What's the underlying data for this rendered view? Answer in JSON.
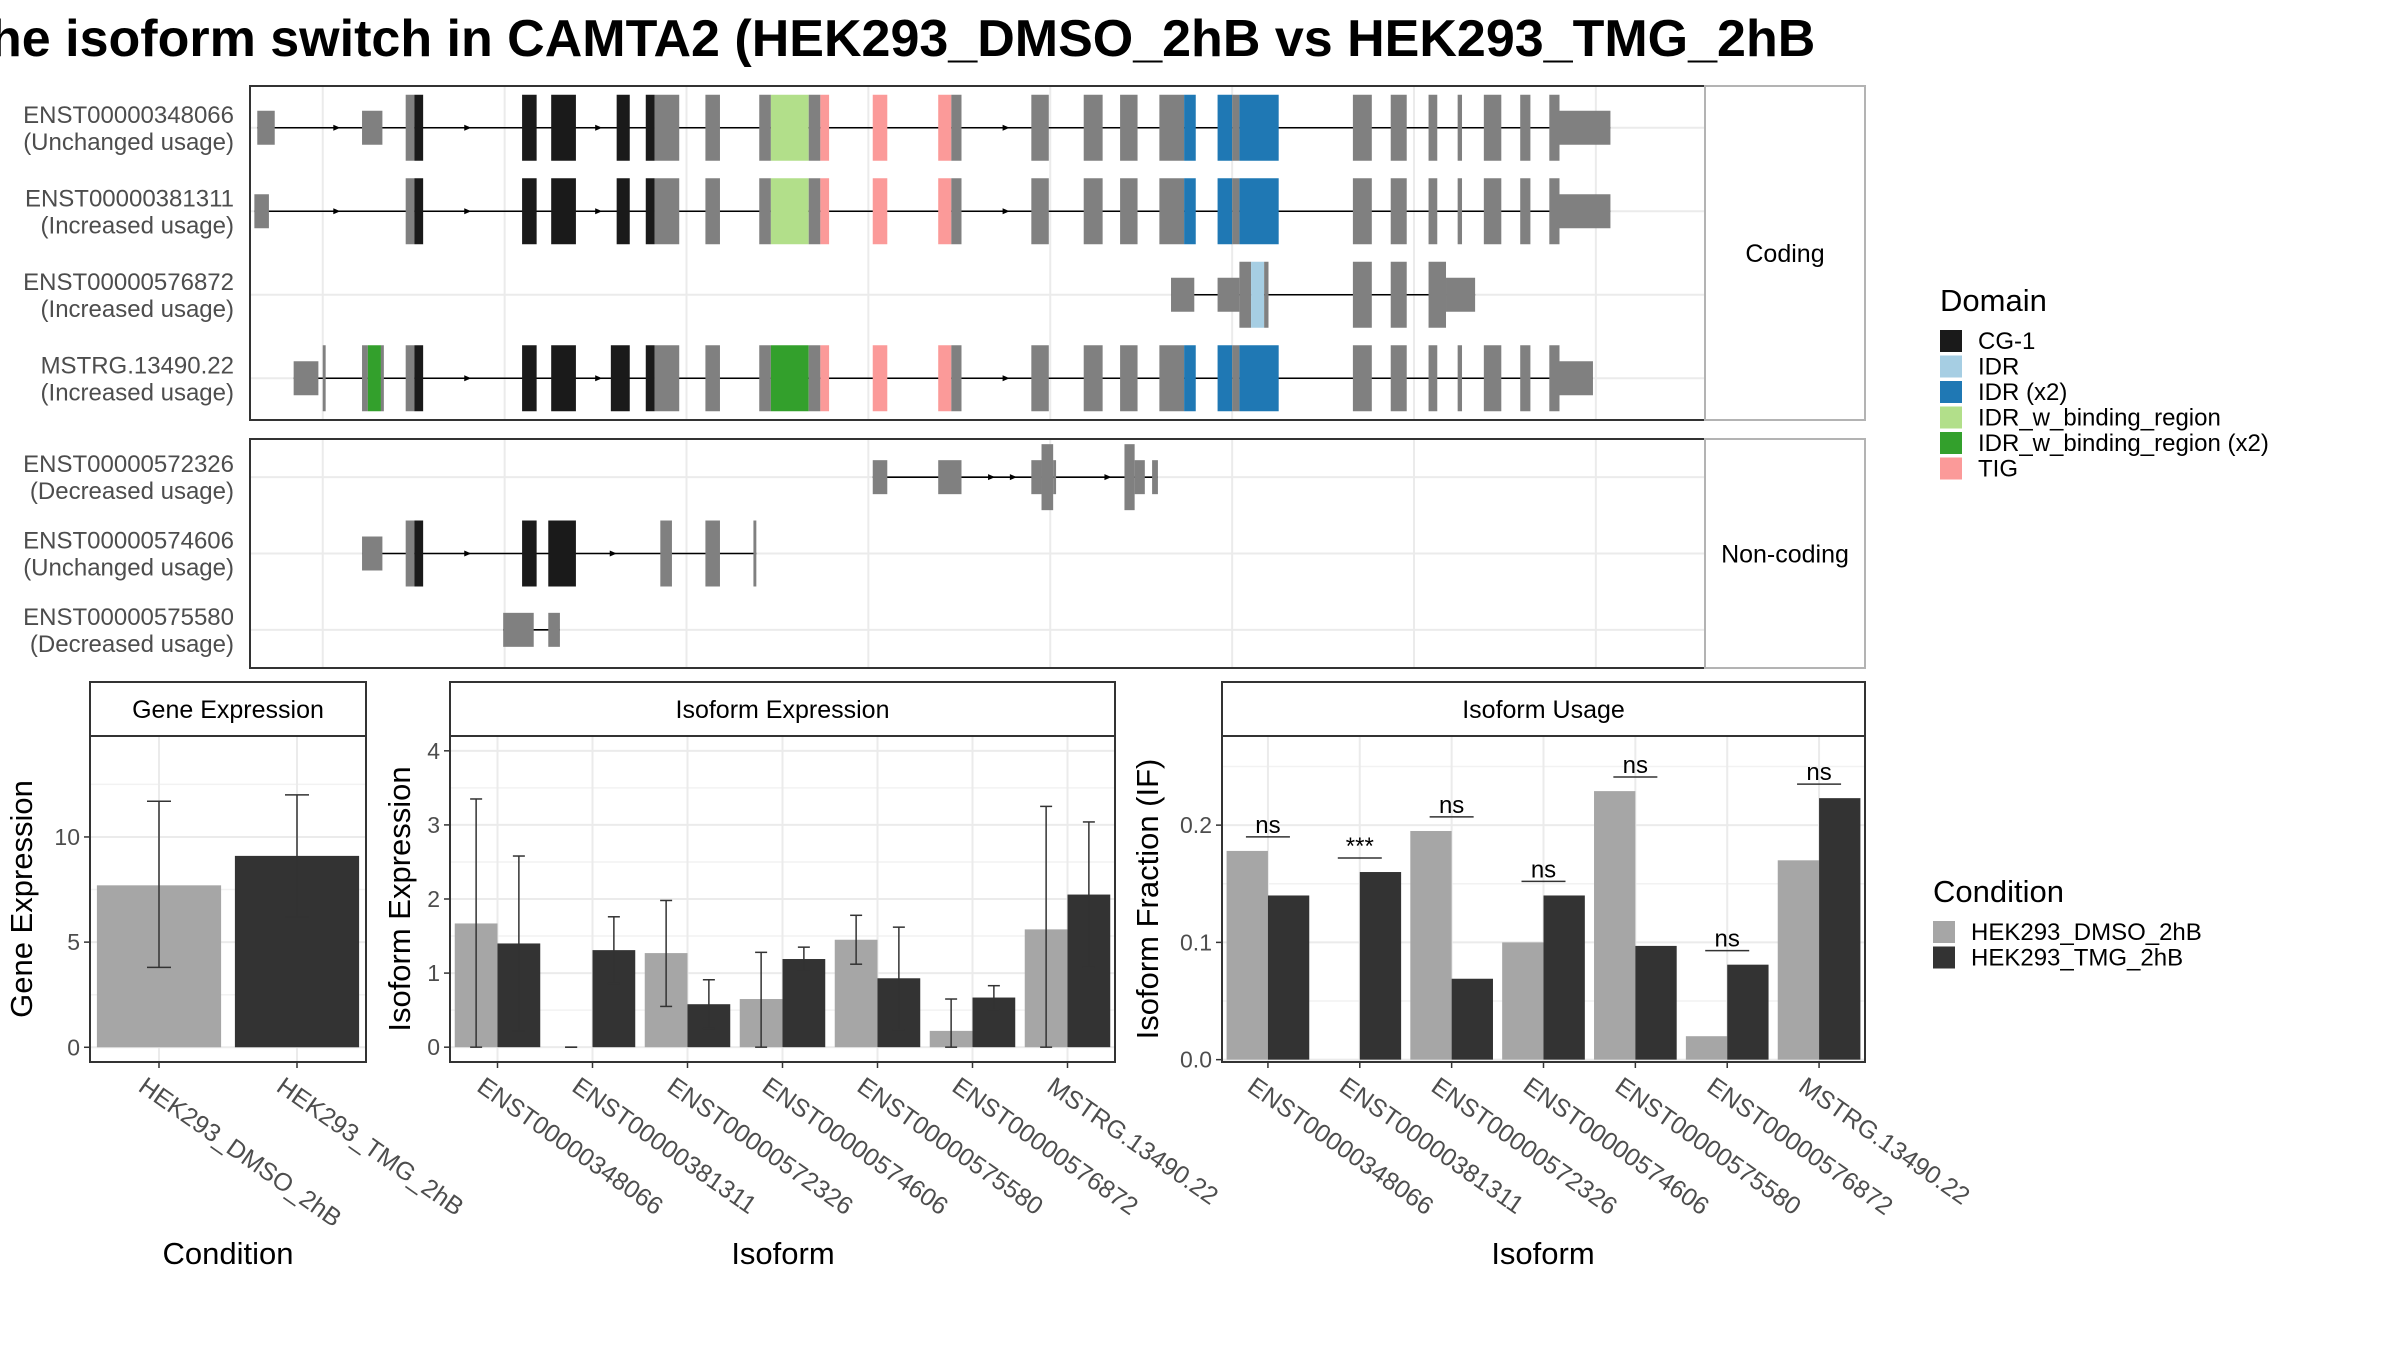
{
  "title": "he isoform switch in CAMTA2 (HEK293_DMSO_2hB vs HEK293_TMG_2hB",
  "colors": {
    "exon": "#808080",
    "panel_border": "#333333",
    "strip_border": "#b3b3b3",
    "grid": "#ebebeb",
    "cond1": "#a6a6a6",
    "cond2": "#333333",
    "CG-1": "#1a1a1a",
    "IDR": "#a6cee3",
    "IDR (x2)": "#1f78b4",
    "IDR_w_binding_region": "#b2df8a",
    "IDR_w_binding_region (x2)": "#33a02c",
    "TIG": "#fb9a99"
  },
  "structure": {
    "x_range": [
      0,
      1000
    ],
    "coding_label": "Coding",
    "noncoding_label": "Non-coding",
    "coding": [
      {
        "id": "ENST00000348066",
        "usage": "(Unchanged usage)",
        "exons": [
          [
            5,
            17,
            "s"
          ],
          [
            77,
            91,
            "s"
          ],
          [
            107,
            113,
            "t"
          ],
          [
            113,
            119,
            "t",
            "CG-1"
          ],
          [
            187,
            197,
            "t",
            "CG-1"
          ],
          [
            207,
            224,
            "t",
            "CG-1"
          ],
          [
            252,
            261,
            "t",
            "CG-1"
          ],
          [
            272,
            278,
            "t",
            "CG-1"
          ],
          [
            278,
            295,
            "t"
          ],
          [
            313,
            323,
            "t"
          ],
          [
            350,
            358,
            "t"
          ],
          [
            358,
            384,
            "t",
            "IDR_w_binding_region"
          ],
          [
            384,
            392,
            "t"
          ],
          [
            392,
            398,
            "t",
            "TIG"
          ],
          [
            428,
            438,
            "t",
            "TIG"
          ],
          [
            473,
            482,
            "t",
            "TIG"
          ],
          [
            482,
            489,
            "t"
          ],
          [
            537,
            549,
            "t"
          ],
          [
            573,
            586,
            "t"
          ],
          [
            598,
            610,
            "t"
          ],
          [
            625,
            642,
            "t"
          ],
          [
            642,
            650,
            "t",
            "IDR (x2)"
          ],
          [
            665,
            675,
            "t",
            "IDR (x2)"
          ],
          [
            675,
            680,
            "t"
          ],
          [
            680,
            707,
            "t",
            "IDR (x2)"
          ],
          [
            758,
            771,
            "t"
          ],
          [
            784,
            795,
            "t"
          ],
          [
            810,
            816,
            "t"
          ],
          [
            830,
            833,
            "t"
          ],
          [
            848,
            860,
            "t"
          ],
          [
            873,
            880,
            "t"
          ],
          [
            893,
            900,
            "t"
          ],
          [
            900,
            935,
            "s"
          ]
        ],
        "arrows": [
          60,
          150,
          240,
          520
        ]
      },
      {
        "id": "ENST00000381311",
        "usage": "(Increased usage)",
        "exons": [
          [
            3,
            13,
            "s"
          ],
          [
            107,
            113,
            "t"
          ],
          [
            113,
            119,
            "t",
            "CG-1"
          ],
          [
            187,
            197,
            "t",
            "CG-1"
          ],
          [
            207,
            224,
            "t",
            "CG-1"
          ],
          [
            252,
            261,
            "t",
            "CG-1"
          ],
          [
            272,
            278,
            "t",
            "CG-1"
          ],
          [
            278,
            295,
            "t"
          ],
          [
            313,
            323,
            "t"
          ],
          [
            350,
            358,
            "t"
          ],
          [
            358,
            384,
            "t",
            "IDR_w_binding_region"
          ],
          [
            384,
            392,
            "t"
          ],
          [
            392,
            398,
            "t",
            "TIG"
          ],
          [
            428,
            438,
            "t",
            "TIG"
          ],
          [
            473,
            482,
            "t",
            "TIG"
          ],
          [
            482,
            489,
            "t"
          ],
          [
            537,
            549,
            "t"
          ],
          [
            573,
            586,
            "t"
          ],
          [
            598,
            610,
            "t"
          ],
          [
            625,
            642,
            "t"
          ],
          [
            642,
            650,
            "t",
            "IDR (x2)"
          ],
          [
            665,
            675,
            "t",
            "IDR (x2)"
          ],
          [
            675,
            680,
            "t"
          ],
          [
            680,
            707,
            "t",
            "IDR (x2)"
          ],
          [
            758,
            771,
            "t"
          ],
          [
            784,
            795,
            "t"
          ],
          [
            810,
            816,
            "t"
          ],
          [
            830,
            833,
            "t"
          ],
          [
            848,
            860,
            "t"
          ],
          [
            873,
            880,
            "t"
          ],
          [
            893,
            900,
            "t"
          ],
          [
            900,
            935,
            "s"
          ]
        ],
        "arrows": [
          60,
          150,
          240,
          520
        ]
      },
      {
        "id": "ENST00000576872",
        "usage": "(Increased usage)",
        "exons": [
          [
            633,
            649,
            "s"
          ],
          [
            665,
            680,
            "s"
          ],
          [
            680,
            688,
            "t"
          ],
          [
            688,
            697,
            "t",
            "IDR"
          ],
          [
            697,
            700,
            "t"
          ],
          [
            758,
            771,
            "t"
          ],
          [
            784,
            795,
            "t"
          ],
          [
            810,
            822,
            "t"
          ],
          [
            822,
            842,
            "s"
          ]
        ],
        "arrows": []
      },
      {
        "id": "MSTRG.13490.22",
        "usage": "(Increased usage)",
        "exons": [
          [
            30,
            47,
            "s"
          ],
          [
            50,
            52,
            "t"
          ],
          [
            77,
            81,
            "t"
          ],
          [
            81,
            90,
            "t",
            "IDR_w_binding_region (x2)"
          ],
          [
            90,
            92,
            "t"
          ],
          [
            107,
            113,
            "t"
          ],
          [
            113,
            119,
            "t",
            "CG-1"
          ],
          [
            187,
            197,
            "t",
            "CG-1"
          ],
          [
            207,
            224,
            "t",
            "CG-1"
          ],
          [
            248,
            261,
            "t",
            "CG-1"
          ],
          [
            272,
            278,
            "t",
            "CG-1"
          ],
          [
            278,
            295,
            "t"
          ],
          [
            313,
            323,
            "t"
          ],
          [
            350,
            358,
            "t"
          ],
          [
            358,
            384,
            "t",
            "IDR_w_binding_region (x2)"
          ],
          [
            384,
            392,
            "t"
          ],
          [
            392,
            398,
            "t",
            "TIG"
          ],
          [
            428,
            438,
            "t",
            "TIG"
          ],
          [
            473,
            482,
            "t",
            "TIG"
          ],
          [
            482,
            489,
            "t"
          ],
          [
            537,
            549,
            "t"
          ],
          [
            573,
            586,
            "t"
          ],
          [
            598,
            610,
            "t"
          ],
          [
            625,
            642,
            "t"
          ],
          [
            642,
            650,
            "t",
            "IDR (x2)"
          ],
          [
            665,
            675,
            "t",
            "IDR (x2)"
          ],
          [
            675,
            680,
            "t"
          ],
          [
            680,
            707,
            "t",
            "IDR (x2)"
          ],
          [
            758,
            771,
            "t"
          ],
          [
            784,
            795,
            "t"
          ],
          [
            810,
            816,
            "t"
          ],
          [
            830,
            833,
            "t"
          ],
          [
            848,
            860,
            "t"
          ],
          [
            873,
            880,
            "t"
          ],
          [
            893,
            900,
            "t"
          ],
          [
            900,
            923,
            "s"
          ]
        ],
        "arrows": [
          150,
          240,
          520
        ]
      }
    ],
    "noncoding": [
      {
        "id": "ENST00000572326",
        "usage": "(Decreased usage)",
        "exons": [
          [
            428,
            438,
            "s"
          ],
          [
            473,
            489,
            "s"
          ],
          [
            537,
            544,
            "s"
          ],
          [
            544,
            552,
            "t"
          ],
          [
            552,
            554,
            "s"
          ],
          [
            601,
            608,
            "t"
          ],
          [
            608,
            615,
            "s"
          ],
          [
            620,
            624,
            "s"
          ]
        ],
        "arrows": [
          510,
          525,
          590
        ]
      },
      {
        "id": "ENST00000574606",
        "usage": "(Unchanged usage)",
        "exons": [
          [
            77,
            91,
            "s"
          ],
          [
            107,
            113,
            "t"
          ],
          [
            113,
            119,
            "t",
            "CG-1"
          ],
          [
            187,
            197,
            "t",
            "CG-1"
          ],
          [
            205,
            224,
            "t",
            "CG-1"
          ],
          [
            282,
            290,
            "t"
          ],
          [
            313,
            323,
            "t"
          ],
          [
            346,
            348,
            "t"
          ]
        ],
        "arrows": [
          150,
          250
        ]
      },
      {
        "id": "ENST00000575580",
        "usage": "(Decreased usage)",
        "exons": [
          [
            174,
            195,
            "s"
          ],
          [
            205,
            213,
            "s"
          ]
        ],
        "arrows": []
      }
    ]
  },
  "domain_legend": {
    "title": "Domain",
    "items": [
      "CG-1",
      "IDR",
      "IDR (x2)",
      "IDR_w_binding_region",
      "IDR_w_binding_region (x2)",
      "TIG"
    ]
  },
  "condition_legend": {
    "title": "Condition",
    "items": [
      "HEK293_DMSO_2hB",
      "HEK293_TMG_2hB"
    ]
  },
  "chart_data": [
    {
      "type": "bar",
      "strip": "Gene Expression",
      "categories": [
        "HEK293_DMSO_2hB",
        "HEK293_TMG_2hB"
      ],
      "values": [
        7.7,
        9.1
      ],
      "error_low": [
        3.8,
        6.2
      ],
      "error_high": [
        11.7,
        12.0
      ],
      "xlabel": "Condition",
      "ylabel": "Gene Expression",
      "ylim": [
        -0.7,
        14.8
      ],
      "yticks": [
        0,
        5,
        10
      ],
      "grid": true
    },
    {
      "type": "bar",
      "strip": "Isoform Expression",
      "categories": [
        "ENST00000348066",
        "ENST00000381311",
        "ENST00000572326",
        "ENST00000574606",
        "ENST00000575580",
        "ENST00000576872",
        "MSTRG.13490.22"
      ],
      "series": [
        {
          "name": "HEK293_DMSO_2hB",
          "values": [
            1.67,
            0.0,
            1.27,
            0.65,
            1.45,
            0.22,
            1.59
          ],
          "error_low": [
            0.0,
            0.0,
            0.55,
            0.0,
            1.12,
            0.0,
            0.0
          ],
          "error_high": [
            3.35,
            0.0,
            1.98,
            1.28,
            1.78,
            0.65,
            3.25
          ]
        },
        {
          "name": "HEK293_TMG_2hB",
          "values": [
            1.4,
            1.31,
            0.58,
            1.19,
            0.93,
            0.67,
            2.06
          ],
          "error_low": [
            0.22,
            0.86,
            0.25,
            1.03,
            0.23,
            0.51,
            1.08
          ],
          "error_high": [
            2.58,
            1.76,
            0.91,
            1.35,
            1.62,
            0.83,
            3.04
          ]
        }
      ],
      "xlabel": "Isoform",
      "ylabel": "Isoform Expression",
      "ylim": [
        -0.2,
        4.2
      ],
      "yticks": [
        0,
        1,
        2,
        3,
        4
      ],
      "grid": true
    },
    {
      "type": "bar",
      "strip": "Isoform Usage",
      "categories": [
        "ENST00000348066",
        "ENST00000381311",
        "ENST00000572326",
        "ENST00000574606",
        "ENST00000575580",
        "ENST00000576872",
        "MSTRG.13490.22"
      ],
      "series": [
        {
          "name": "HEK293_DMSO_2hB",
          "values": [
            0.178,
            0.0,
            0.195,
            0.1,
            0.229,
            0.02,
            0.17
          ]
        },
        {
          "name": "HEK293_TMG_2hB",
          "values": [
            0.14,
            0.16,
            0.069,
            0.14,
            0.097,
            0.081,
            0.223
          ]
        }
      ],
      "significance": [
        {
          "label": "ns",
          "y": 0.19
        },
        {
          "label": "***",
          "y": 0.172
        },
        {
          "label": "ns",
          "y": 0.207
        },
        {
          "label": "ns",
          "y": 0.152
        },
        {
          "label": "ns",
          "y": 0.241
        },
        {
          "label": "ns",
          "y": 0.093
        },
        {
          "label": "ns",
          "y": 0.235
        }
      ],
      "xlabel": "Isoform",
      "ylabel": "Isoform Fraction (IF)",
      "ylim": [
        -0.002,
        0.276
      ],
      "yticks": [
        0.0,
        0.1,
        0.2
      ],
      "ytick_labels": [
        "0.0",
        "0.1",
        "0.2"
      ],
      "grid": true
    }
  ]
}
